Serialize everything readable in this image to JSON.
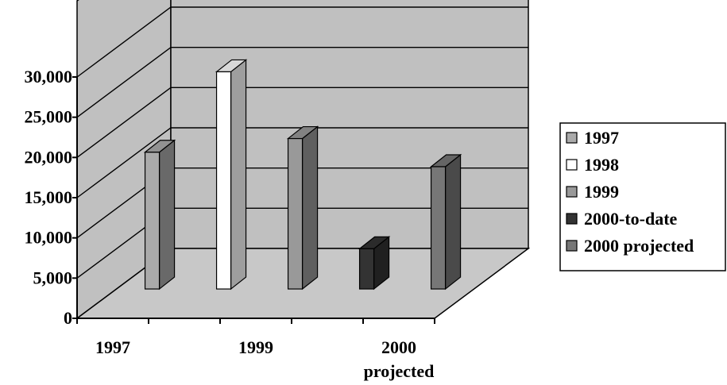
{
  "chart_data": {
    "type": "bar",
    "style": "3d-column",
    "title": "",
    "xlabel": "",
    "ylabel": "",
    "ylim": [
      0,
      30000
    ],
    "yticks": [
      "0",
      "5,000",
      "10,000",
      "15,000",
      "20,000",
      "25,000",
      "30,000"
    ],
    "category_labels": [
      "1997",
      "1999",
      "2000",
      "projected"
    ],
    "categories": [
      "1997",
      "1998",
      "1999",
      "2000-to-date",
      "2000 projected"
    ],
    "series": [
      {
        "name": "1997",
        "value": 17000,
        "color": "#aaaaaa"
      },
      {
        "name": "1998",
        "value": 27000,
        "color": "#ffffff"
      },
      {
        "name": "1999",
        "value": 18700,
        "color": "#999999"
      },
      {
        "name": "2000-to-date",
        "value": 5000,
        "color": "#333333"
      },
      {
        "name": "2000 projected",
        "value": 15200,
        "color": "#777777"
      }
    ],
    "grid": true,
    "wall_color": "#c0c0c0",
    "legend_position": "right"
  }
}
